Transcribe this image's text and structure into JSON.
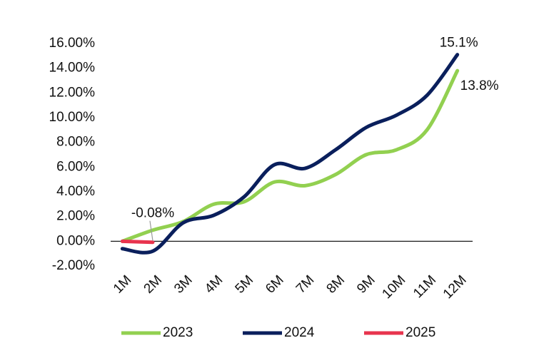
{
  "chart_data": {
    "type": "line",
    "categories": [
      "1M",
      "2M",
      "3M",
      "4M",
      "5M",
      "6M",
      "7M",
      "8M",
      "9M",
      "10M",
      "11M",
      "12M"
    ],
    "series": [
      {
        "name": "2023",
        "color": "#92d050",
        "values": [
          0.0,
          0.9,
          1.6,
          3.0,
          3.2,
          4.8,
          4.5,
          5.4,
          7.0,
          7.4,
          9.0,
          13.8
        ],
        "value_labels": [
          null,
          null,
          null,
          null,
          null,
          null,
          null,
          null,
          null,
          null,
          null,
          "13.8%"
        ]
      },
      {
        "name": "2024",
        "color": "#0a1f5c",
        "values": [
          -0.6,
          -0.8,
          1.5,
          2.1,
          3.6,
          6.2,
          5.9,
          7.4,
          9.2,
          10.2,
          11.8,
          15.1
        ],
        "value_labels": [
          null,
          null,
          null,
          null,
          null,
          null,
          null,
          null,
          null,
          null,
          null,
          "15.1%"
        ]
      },
      {
        "name": "2025",
        "color": "#e8344e",
        "values": [
          0.0,
          -0.08,
          null,
          null,
          null,
          null,
          null,
          null,
          null,
          null,
          null,
          null
        ],
        "value_labels": [
          null,
          "-0.08%",
          null,
          null,
          null,
          null,
          null,
          null,
          null,
          null,
          null,
          null
        ]
      }
    ],
    "ylim": [
      -2,
      16
    ],
    "yticks": [
      {
        "value": -2,
        "label": "-2.00%"
      },
      {
        "value": 0,
        "label": "0.00%"
      },
      {
        "value": 2,
        "label": "2.00%"
      },
      {
        "value": 4,
        "label": "4.00%"
      },
      {
        "value": 6,
        "label": "6.00%"
      },
      {
        "value": 8,
        "label": "8.00%"
      },
      {
        "value": 10,
        "label": "10.00%"
      },
      {
        "value": 12,
        "label": "12.00%"
      },
      {
        "value": 14,
        "label": "14.00%"
      },
      {
        "value": 16,
        "label": "16.00%"
      }
    ],
    "grid": false,
    "legend": "bottom"
  }
}
